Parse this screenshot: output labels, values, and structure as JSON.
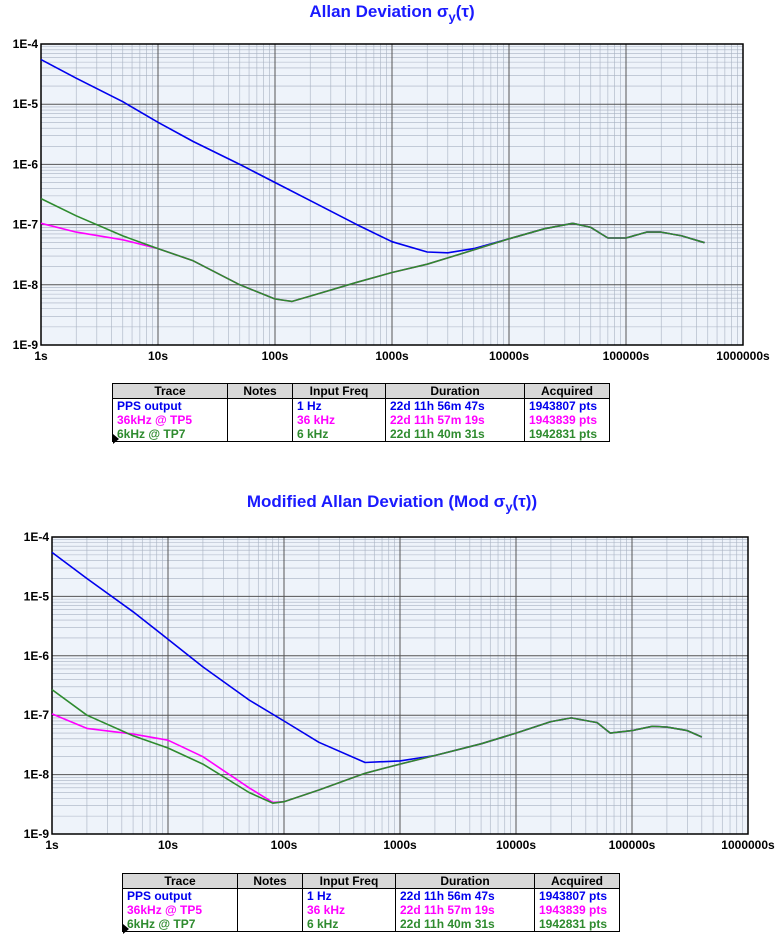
{
  "colors": {
    "blue": "#0000ee",
    "magenta": "#ff00ff",
    "green": "#2e8b2e",
    "grid": "#888888",
    "bg": "#eef3fa"
  },
  "chart_data": [
    {
      "type": "line",
      "title_main": "Allan Deviation σ",
      "title_sub": "y",
      "title_tail": "(τ)",
      "x_scale": "log",
      "y_scale": "log",
      "xlim": [
        1,
        1000000
      ],
      "ylim": [
        1e-09,
        0.0001
      ],
      "x_ticks": [
        "1s",
        "10s",
        "100s",
        "1000s",
        "10000s",
        "100000s",
        "1000000s"
      ],
      "y_ticks": [
        "1E-9",
        "1E-8",
        "1E-7",
        "1E-6",
        "1E-5",
        "1E-4"
      ],
      "grid": true,
      "series": [
        {
          "name": "PPS output",
          "color": "blue",
          "x": [
            1,
            2,
            5,
            10,
            20,
            50,
            100,
            200,
            500,
            1000,
            2000,
            3000,
            5000,
            10000,
            20000,
            35000,
            50000,
            70000,
            100000,
            150000,
            200000,
            300000,
            470000
          ],
          "y": [
            5.5e-05,
            2.7e-05,
            1.1e-05,
            5e-06,
            2.4e-06,
            1e-06,
            5e-07,
            2.5e-07,
            1e-07,
            5.2e-08,
            3.5e-08,
            3.4e-08,
            4e-08,
            5.8e-08,
            8.5e-08,
            1.05e-07,
            9e-08,
            6e-08,
            6e-08,
            7.5e-08,
            7.5e-08,
            6.5e-08,
            5e-08
          ]
        },
        {
          "name": "36kHz @ TP5",
          "color": "magenta",
          "x": [
            1,
            2,
            5,
            10,
            20,
            50,
            100,
            140,
            200,
            500,
            1000,
            2000,
            3000,
            5000,
            10000,
            20000,
            35000,
            50000,
            70000,
            100000,
            150000,
            200000,
            300000,
            470000
          ],
          "y": [
            1.05e-07,
            7.5e-08,
            5.6e-08,
            4e-08,
            2.5e-08,
            1e-08,
            5.8e-09,
            5.3e-09,
            6.5e-09,
            1.1e-08,
            1.6e-08,
            2.2e-08,
            2.8e-08,
            3.8e-08,
            5.8e-08,
            8.5e-08,
            1.05e-07,
            9e-08,
            6e-08,
            6e-08,
            7.5e-08,
            7.5e-08,
            6.5e-08,
            5e-08
          ]
        },
        {
          "name": "6kHz @ TP7",
          "color": "green",
          "x": [
            1,
            2,
            5,
            10,
            20,
            50,
            100,
            140,
            200,
            500,
            1000,
            2000,
            3000,
            5000,
            10000,
            20000,
            35000,
            50000,
            70000,
            100000,
            150000,
            200000,
            300000,
            470000
          ],
          "y": [
            2.7e-07,
            1.4e-07,
            6.5e-08,
            4e-08,
            2.5e-08,
            1e-08,
            5.8e-09,
            5.3e-09,
            6.5e-09,
            1.1e-08,
            1.6e-08,
            2.2e-08,
            2.8e-08,
            3.8e-08,
            5.8e-08,
            8.5e-08,
            1.05e-07,
            9e-08,
            6e-08,
            6e-08,
            7.5e-08,
            7.5e-08,
            6.5e-08,
            5e-08
          ]
        }
      ]
    },
    {
      "type": "line",
      "title_main": "Modified Allan Deviation (Mod σ",
      "title_sub": "y",
      "title_tail": "(τ))",
      "x_scale": "log",
      "y_scale": "log",
      "xlim": [
        1,
        1000000
      ],
      "ylim": [
        1e-09,
        0.0001
      ],
      "x_ticks": [
        "1s",
        "10s",
        "100s",
        "1000s",
        "10000s",
        "100000s",
        "1000000s"
      ],
      "y_ticks": [
        "1E-9",
        "1E-8",
        "1E-7",
        "1E-6",
        "1E-5",
        "1E-4"
      ],
      "grid": true,
      "series": [
        {
          "name": "PPS output",
          "color": "blue",
          "x": [
            1,
            2,
            5,
            10,
            20,
            50,
            100,
            200,
            500,
            1000,
            2000,
            5000,
            10000,
            20000,
            30000,
            50000,
            65000,
            100000,
            150000,
            200000,
            300000,
            400000
          ],
          "y": [
            5.5e-05,
            2e-05,
            5.5e-06,
            1.9e-06,
            6.5e-07,
            1.8e-07,
            8e-08,
            3.5e-08,
            1.6e-08,
            1.7e-08,
            2.1e-08,
            3.3e-08,
            5e-08,
            7.8e-08,
            9e-08,
            7.5e-08,
            5e-08,
            5.5e-08,
            6.5e-08,
            6.3e-08,
            5.5e-08,
            4.3e-08
          ]
        },
        {
          "name": "36kHz @ TP5",
          "color": "magenta",
          "x": [
            1,
            2,
            5,
            10,
            20,
            50,
            80,
            100,
            200,
            500,
            1000,
            2000,
            5000,
            10000,
            20000,
            30000,
            50000,
            65000,
            100000,
            150000,
            200000,
            300000,
            400000
          ],
          "y": [
            1.05e-07,
            6e-08,
            4.8e-08,
            3.8e-08,
            2e-08,
            6e-09,
            3.4e-09,
            3.5e-09,
            5.5e-09,
            1.05e-08,
            1.5e-08,
            2.1e-08,
            3.3e-08,
            5e-08,
            7.8e-08,
            9e-08,
            7.5e-08,
            5e-08,
            5.5e-08,
            6.5e-08,
            6.3e-08,
            5.5e-08,
            4.3e-08
          ]
        },
        {
          "name": "6kHz @ TP7",
          "color": "green",
          "x": [
            1,
            2,
            5,
            10,
            20,
            50,
            80,
            100,
            200,
            500,
            1000,
            2000,
            5000,
            10000,
            20000,
            30000,
            50000,
            65000,
            100000,
            150000,
            200000,
            300000,
            400000
          ],
          "y": [
            2.7e-07,
            1e-07,
            4.5e-08,
            2.8e-08,
            1.5e-08,
            5e-09,
            3.3e-09,
            3.5e-09,
            5.5e-09,
            1.05e-08,
            1.5e-08,
            2.1e-08,
            3.3e-08,
            5e-08,
            7.8e-08,
            9e-08,
            7.5e-08,
            5e-08,
            5.5e-08,
            6.5e-08,
            6.3e-08,
            5.5e-08,
            4.3e-08
          ]
        }
      ]
    }
  ],
  "legend_headers": [
    "Trace",
    "Notes",
    "Input Freq",
    "Duration",
    "Acquired"
  ],
  "legend_rows": [
    {
      "trace": "PPS output",
      "notes": "",
      "freq": "1 Hz",
      "duration": "22d 11h 56m 47s",
      "acquired": "1943807 pts",
      "color": "blue"
    },
    {
      "trace": "36kHz @ TP5",
      "notes": "",
      "freq": "36 kHz",
      "duration": "22d 11h 57m 19s",
      "acquired": "1943839 pts",
      "color": "magenta"
    },
    {
      "trace": "6kHz @ TP7",
      "notes": "",
      "freq": "6 kHz",
      "duration": "22d 11h 40m 31s",
      "acquired": "1942831 pts",
      "color": "green"
    }
  ]
}
